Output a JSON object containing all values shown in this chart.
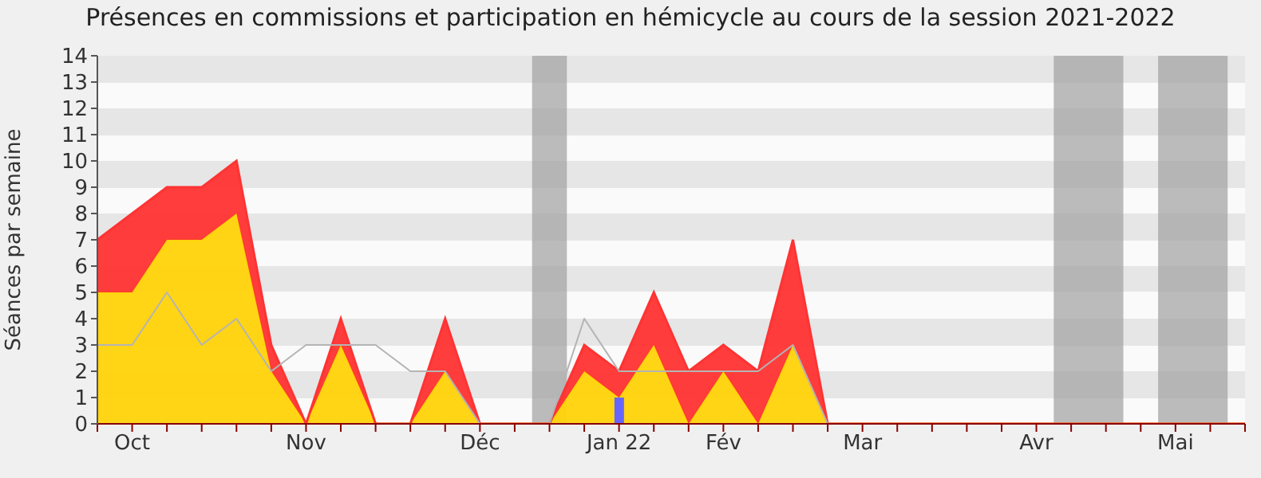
{
  "chart_data": {
    "type": "area",
    "title": "Présences en commissions et participation en hémicycle au cours de la session 2021-2022",
    "ylabel": "Séances par semaine",
    "stacked": true,
    "categories": [
      null,
      "Oct",
      null,
      null,
      null,
      null,
      "Nov",
      null,
      null,
      null,
      null,
      "Déc",
      null,
      null,
      null,
      "Jan 22",
      null,
      null,
      "Fév",
      null,
      null,
      null,
      "Mar",
      null,
      null,
      null,
      null,
      "Avr",
      null,
      null,
      null,
      "Mai",
      null,
      null
    ],
    "series": [
      {
        "color": "#ffd30a",
        "values": [
          5,
          5,
          7,
          7,
          8,
          2,
          0,
          3,
          0,
          0,
          2,
          0,
          0,
          0,
          2,
          1,
          3,
          0,
          2,
          0,
          3,
          0,
          0,
          0,
          0,
          0,
          0,
          0,
          0,
          0,
          0,
          0,
          0,
          0
        ]
      },
      {
        "color": "#ff3333",
        "values": [
          2,
          3,
          2,
          2,
          2,
          1,
          0,
          1,
          0,
          0,
          2,
          0,
          0,
          0,
          1,
          1,
          2,
          2,
          1,
          2,
          4,
          0,
          0,
          0,
          0,
          0,
          0,
          0,
          0,
          0,
          0,
          0,
          0,
          0
        ]
      },
      {
        "type": "line",
        "color": "#b4b4b4",
        "values": [
          3,
          3,
          5,
          3,
          4,
          2,
          3,
          3,
          3,
          2,
          2,
          0,
          0,
          0,
          4,
          2,
          2,
          2,
          2,
          2,
          3,
          0,
          0,
          0,
          0,
          0,
          0,
          0,
          0,
          0,
          0,
          0,
          0,
          0
        ]
      },
      {
        "type": "bar",
        "color": "#6666ff",
        "values": [
          null,
          null,
          null,
          null,
          null,
          null,
          null,
          null,
          null,
          null,
          null,
          null,
          null,
          null,
          null,
          1,
          null,
          null,
          null,
          null,
          null,
          null,
          null,
          null,
          null,
          null,
          null,
          null,
          null,
          null,
          null,
          null,
          null,
          null
        ]
      }
    ],
    "ylim": [
      0,
      14
    ],
    "yticks": [
      0,
      1,
      2,
      3,
      4,
      5,
      6,
      7,
      8,
      9,
      10,
      11,
      12,
      13,
      14
    ]
  }
}
